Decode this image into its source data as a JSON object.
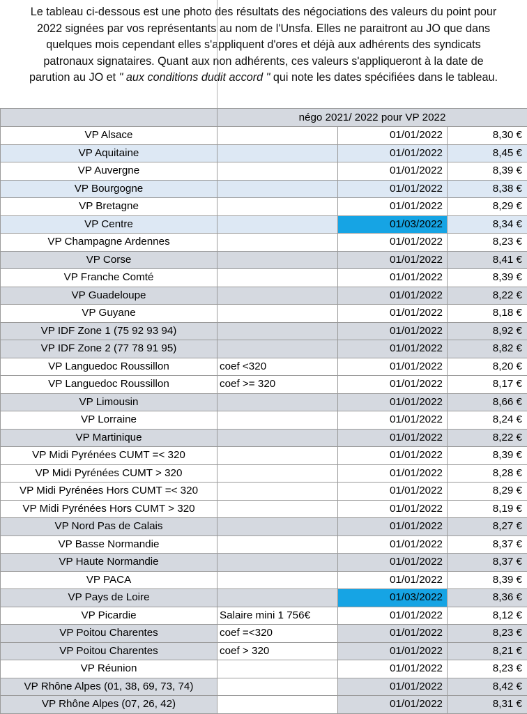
{
  "intro": {
    "line1": "Le tableau ci-dessous est une photo des résultats des négociations des valeurs du point pour",
    "line2": "2022 signées par vos représentants au nom de l'Unsfa. Elles ne paraitront au JO que dans",
    "line3": "quelques mois cependant elles s'appliquent d'ores et déjà aux adhérents des syndicats",
    "line4": "patronaux signataires. Quant aux non adhérents, ces valeurs s'appliqueront à la date de",
    "line5_a": "parution au JO et ",
    "line5_italic": "\" aux conditions dudit accord \"",
    "line5_b": " qui note les dates spécifiées dans le tableau."
  },
  "table": {
    "header": "négo 2021/ 2022 pour VP 2022",
    "colors": {
      "blue_row": "#dde8f4",
      "gray_row": "#d5d9e0",
      "highlight": "#16a4e4"
    },
    "rows": [
      {
        "region": "VP Alsace",
        "note": "",
        "date": "01/01/2022",
        "value": "8,30 €",
        "shade": "none"
      },
      {
        "region": "VP Aquitaine",
        "note": "",
        "date": "01/01/2022",
        "value": "8,45 €",
        "shade": "blue"
      },
      {
        "region": "VP Auvergne",
        "note": "",
        "date": "01/01/2022",
        "value": "8,39 €",
        "shade": "none"
      },
      {
        "region": "VP Bourgogne",
        "note": "",
        "date": "01/01/2022",
        "value": "8,38 €",
        "shade": "blue"
      },
      {
        "region": "VP Bretagne",
        "note": "",
        "date": "01/01/2022",
        "value": "8,29 €",
        "shade": "none"
      },
      {
        "region": "VP Centre",
        "note": "",
        "date": "01/03/2022",
        "value": "8,34 €",
        "shade": "blue",
        "highlight": true
      },
      {
        "region": "VP Champagne Ardennes",
        "note": "",
        "date": "01/01/2022",
        "value": "8,23 €",
        "shade": "none"
      },
      {
        "region": "VP Corse",
        "note": "",
        "date": "01/01/2022",
        "value": "8,41 €",
        "shade": "gray"
      },
      {
        "region": "VP Franche Comté",
        "note": "",
        "date": "01/01/2022",
        "value": "8,39 €",
        "shade": "none"
      },
      {
        "region": "VP Guadeloupe",
        "note": "",
        "date": "01/01/2022",
        "value": "8,22 €",
        "shade": "gray"
      },
      {
        "region": "VP Guyane",
        "note": "",
        "date": "01/01/2022",
        "value": "8,18 €",
        "shade": "none"
      },
      {
        "region": "VP IDF Zone 1 (75 92 93 94)",
        "note": "",
        "date": "01/01/2022",
        "value": "8,92 €",
        "shade": "gray"
      },
      {
        "region": "VP IDF Zone 2 (77 78 91 95)",
        "note": "",
        "date": "01/01/2022",
        "value": "8,82 €",
        "shade": "gray"
      },
      {
        "region": "VP Languedoc Roussillon",
        "note": "coef <320",
        "date": "01/01/2022",
        "value": "8,20 €",
        "shade": "none"
      },
      {
        "region": "VP Languedoc Roussillon",
        "note": "coef >= 320",
        "date": "01/01/2022",
        "value": "8,17 €",
        "shade": "none"
      },
      {
        "region": "VP Limousin",
        "note": "",
        "date": "01/01/2022",
        "value": "8,66 €",
        "shade": "gray"
      },
      {
        "region": "VP Lorraine",
        "note": "",
        "date": "01/01/2022",
        "value": "8,24 €",
        "shade": "none"
      },
      {
        "region": "VP Martinique",
        "note": "",
        "date": "01/01/2022",
        "value": "8,22 €",
        "shade": "gray"
      },
      {
        "region": "VP Midi Pyrénées CUMT =< 320",
        "note": "",
        "date": "01/01/2022",
        "value": "8,39 €",
        "shade": "none"
      },
      {
        "region": "VP Midi Pyrénées CUMT > 320",
        "note": "",
        "date": "01/01/2022",
        "value": "8,28 €",
        "shade": "none"
      },
      {
        "region": "VP Midi Pyrénées Hors CUMT =< 320",
        "note": "",
        "date": "01/01/2022",
        "value": "8,29 €",
        "shade": "none"
      },
      {
        "region": "VP Midi Pyrénées Hors CUMT > 320",
        "note": "",
        "date": "01/01/2022",
        "value": "8,19 €",
        "shade": "none"
      },
      {
        "region": "VP Nord Pas de Calais",
        "note": "",
        "date": "01/01/2022",
        "value": "8,27 €",
        "shade": "gray"
      },
      {
        "region": "VP Basse Normandie",
        "note": "",
        "date": "01/01/2022",
        "value": "8,37 €",
        "shade": "none"
      },
      {
        "region": "VP Haute Normandie",
        "note": "",
        "date": "01/01/2022",
        "value": "8,37 €",
        "shade": "gray"
      },
      {
        "region": "VP PACA",
        "note": "",
        "date": "01/01/2022",
        "value": "8,39 €",
        "shade": "none"
      },
      {
        "region": "VP Pays de Loire",
        "note": "",
        "date": "01/03/2022",
        "value": "8,36 €",
        "shade": "gray",
        "highlight": true
      },
      {
        "region": "VP Picardie",
        "note": "Salaire mini 1 756€",
        "date": "01/01/2022",
        "value": "8,12 €",
        "shade": "none"
      },
      {
        "region": "VP Poitou Charentes",
        "note": "coef =<320",
        "date": "01/01/2022",
        "value": "8,23 €",
        "shade": "gray",
        "note_white": true
      },
      {
        "region": "VP Poitou Charentes",
        "note": "coef > 320",
        "date": "01/01/2022",
        "value": "8,21 €",
        "shade": "gray",
        "note_white": true
      },
      {
        "region": "VP Réunion",
        "note": "",
        "date": "01/01/2022",
        "value": "8,23 €",
        "shade": "none"
      },
      {
        "region": "VP Rhône Alpes (01, 38, 69, 73, 74)",
        "note": "",
        "date": "01/01/2022",
        "value": "8,42 €",
        "shade": "gray",
        "note_white": true
      },
      {
        "region": "VP Rhône Alpes (07, 26, 42)",
        "note": "",
        "date": "01/01/2022",
        "value": "8,31 €",
        "shade": "gray",
        "note_white": true
      }
    ]
  }
}
